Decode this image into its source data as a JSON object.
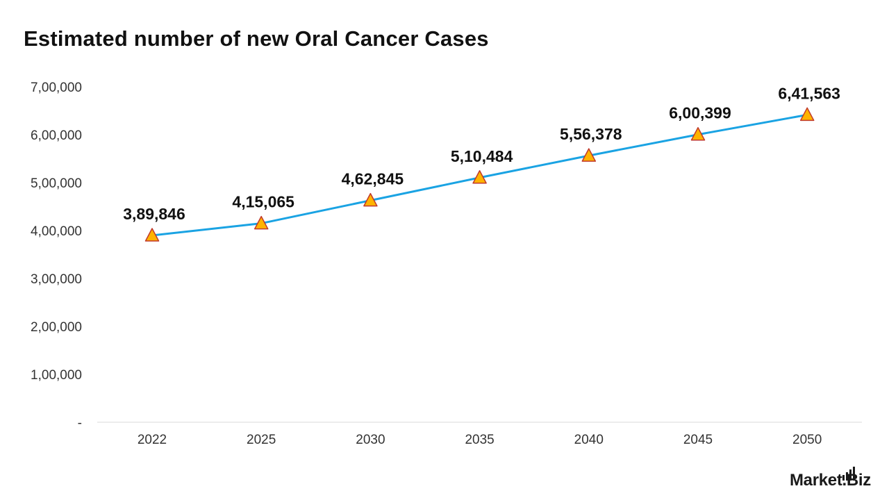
{
  "brand": {
    "name": "Market.Biz",
    "logo_icon": "bar-chart-icon"
  },
  "chart_data": {
    "type": "line",
    "title": "Estimated number of new Oral Cancer Cases",
    "xlabel": "",
    "ylabel": "",
    "categories": [
      "2022",
      "2025",
      "2030",
      "2035",
      "2040",
      "2045",
      "2050"
    ],
    "series": [
      {
        "values": [
          389846,
          415065,
          462845,
          510484,
          556378,
          600399,
          641563
        ],
        "data_labels": [
          "3,89,846",
          "4,15,065",
          "4,62,845",
          "5,10,484",
          "5,56,378",
          "6,00,399",
          "6,41,563"
        ],
        "line_color": "#1AA3E3",
        "marker": "triangle",
        "marker_fill": "#FFB300",
        "marker_stroke": "#C0392B"
      }
    ],
    "ylim": [
      0,
      700000
    ],
    "yticks": [
      0,
      100000,
      200000,
      300000,
      400000,
      500000,
      600000,
      700000
    ],
    "ytick_labels": [
      "-",
      "1,00,000",
      "2,00,000",
      "3,00,000",
      "4,00,000",
      "5,00,000",
      "6,00,000",
      "7,00,000"
    ],
    "grid": false,
    "legend": "none"
  }
}
